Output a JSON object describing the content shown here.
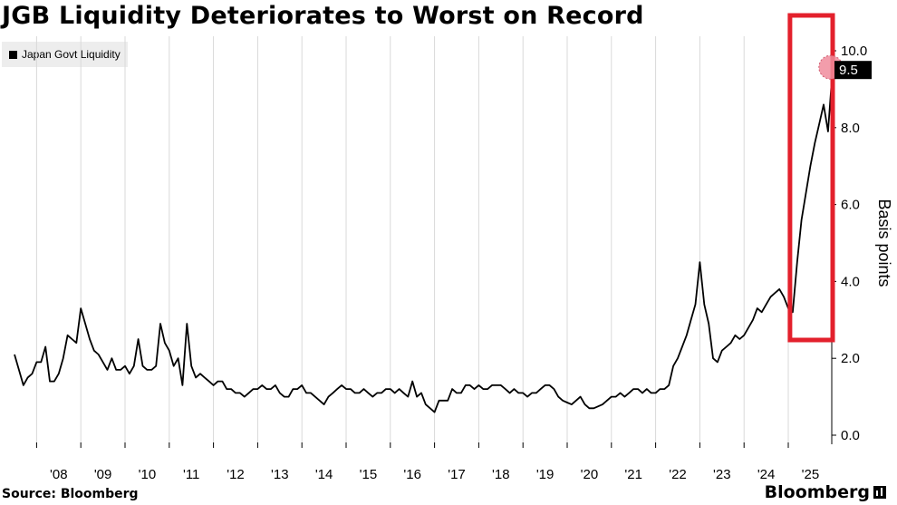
{
  "title": "JGB Liquidity Deteriorates to Worst on Record",
  "source": "Source: Bloomberg",
  "brand": "Bloomberg",
  "colors": {
    "line": "#000000",
    "highlight_box": "#e3202c",
    "highlight_dot": "#f08c9c",
    "grid": "#d9d9d9"
  },
  "chart_data": {
    "type": "line",
    "title": "JGB Liquidity Deteriorates to Worst on Record",
    "ylabel": "Basis points",
    "xlabel": "",
    "ylim": [
      0,
      10
    ],
    "y_ticks": [
      "0.0",
      "2.0",
      "4.0",
      "6.0",
      "8.0",
      "10.0"
    ],
    "x_tick_labels": [
      "'08",
      "'09",
      "'10",
      "'11",
      "'12",
      "'13",
      "'14",
      "'15",
      "'16",
      "'17",
      "'18",
      "'19",
      "'20",
      "'21",
      "'22",
      "'23",
      "'24",
      "'25"
    ],
    "grid": "vertical",
    "legend_position": "top-left",
    "last_value_label": "9.5",
    "series": [
      {
        "name": "Japan Govt Liquidity",
        "points": [
          [
            2007.5,
            2.1
          ],
          [
            2007.6,
            1.7
          ],
          [
            2007.7,
            1.3
          ],
          [
            2007.8,
            1.5
          ],
          [
            2007.9,
            1.6
          ],
          [
            2008.0,
            1.9
          ],
          [
            2008.1,
            1.9
          ],
          [
            2008.2,
            2.3
          ],
          [
            2008.3,
            1.4
          ],
          [
            2008.4,
            1.4
          ],
          [
            2008.5,
            1.6
          ],
          [
            2008.6,
            2.0
          ],
          [
            2008.7,
            2.6
          ],
          [
            2008.8,
            2.5
          ],
          [
            2008.9,
            2.4
          ],
          [
            2009.0,
            3.3
          ],
          [
            2009.1,
            2.9
          ],
          [
            2009.2,
            2.5
          ],
          [
            2009.3,
            2.2
          ],
          [
            2009.4,
            2.1
          ],
          [
            2009.5,
            1.9
          ],
          [
            2009.6,
            1.7
          ],
          [
            2009.7,
            2.0
          ],
          [
            2009.8,
            1.7
          ],
          [
            2009.9,
            1.7
          ],
          [
            2010.0,
            1.8
          ],
          [
            2010.1,
            1.6
          ],
          [
            2010.2,
            1.8
          ],
          [
            2010.3,
            2.5
          ],
          [
            2010.4,
            1.8
          ],
          [
            2010.5,
            1.7
          ],
          [
            2010.6,
            1.7
          ],
          [
            2010.7,
            1.8
          ],
          [
            2010.8,
            2.9
          ],
          [
            2010.9,
            2.4
          ],
          [
            2011.0,
            2.2
          ],
          [
            2011.1,
            1.8
          ],
          [
            2011.2,
            2.0
          ],
          [
            2011.3,
            1.3
          ],
          [
            2011.4,
            2.9
          ],
          [
            2011.5,
            1.8
          ],
          [
            2011.6,
            1.5
          ],
          [
            2011.7,
            1.6
          ],
          [
            2011.8,
            1.5
          ],
          [
            2011.9,
            1.4
          ],
          [
            2012.0,
            1.3
          ],
          [
            2012.1,
            1.4
          ],
          [
            2012.2,
            1.4
          ],
          [
            2012.3,
            1.2
          ],
          [
            2012.4,
            1.2
          ],
          [
            2012.5,
            1.1
          ],
          [
            2012.6,
            1.1
          ],
          [
            2012.7,
            1.0
          ],
          [
            2012.8,
            1.1
          ],
          [
            2012.9,
            1.2
          ],
          [
            2013.0,
            1.2
          ],
          [
            2013.1,
            1.3
          ],
          [
            2013.2,
            1.2
          ],
          [
            2013.3,
            1.2
          ],
          [
            2013.4,
            1.3
          ],
          [
            2013.5,
            1.1
          ],
          [
            2013.6,
            1.0
          ],
          [
            2013.7,
            1.0
          ],
          [
            2013.8,
            1.2
          ],
          [
            2013.9,
            1.2
          ],
          [
            2014.0,
            1.3
          ],
          [
            2014.1,
            1.1
          ],
          [
            2014.2,
            1.1
          ],
          [
            2014.3,
            1.0
          ],
          [
            2014.4,
            0.9
          ],
          [
            2014.5,
            0.8
          ],
          [
            2014.6,
            1.0
          ],
          [
            2014.7,
            1.1
          ],
          [
            2014.8,
            1.2
          ],
          [
            2014.9,
            1.3
          ],
          [
            2015.0,
            1.2
          ],
          [
            2015.1,
            1.2
          ],
          [
            2015.2,
            1.1
          ],
          [
            2015.3,
            1.1
          ],
          [
            2015.4,
            1.2
          ],
          [
            2015.5,
            1.1
          ],
          [
            2015.6,
            1.0
          ],
          [
            2015.7,
            1.1
          ],
          [
            2015.8,
            1.1
          ],
          [
            2015.9,
            1.2
          ],
          [
            2016.0,
            1.2
          ],
          [
            2016.1,
            1.1
          ],
          [
            2016.2,
            1.2
          ],
          [
            2016.3,
            1.1
          ],
          [
            2016.4,
            1.0
          ],
          [
            2016.5,
            1.4
          ],
          [
            2016.6,
            1.0
          ],
          [
            2016.7,
            1.1
          ],
          [
            2016.8,
            0.8
          ],
          [
            2016.9,
            0.7
          ],
          [
            2017.0,
            0.6
          ],
          [
            2017.1,
            0.9
          ],
          [
            2017.2,
            0.9
          ],
          [
            2017.3,
            0.9
          ],
          [
            2017.4,
            1.2
          ],
          [
            2017.5,
            1.1
          ],
          [
            2017.6,
            1.1
          ],
          [
            2017.7,
            1.3
          ],
          [
            2017.8,
            1.3
          ],
          [
            2017.9,
            1.2
          ],
          [
            2018.0,
            1.3
          ],
          [
            2018.1,
            1.2
          ],
          [
            2018.2,
            1.2
          ],
          [
            2018.3,
            1.3
          ],
          [
            2018.4,
            1.3
          ],
          [
            2018.5,
            1.3
          ],
          [
            2018.6,
            1.2
          ],
          [
            2018.7,
            1.1
          ],
          [
            2018.8,
            1.2
          ],
          [
            2018.9,
            1.1
          ],
          [
            2019.0,
            1.1
          ],
          [
            2019.1,
            1.0
          ],
          [
            2019.2,
            1.1
          ],
          [
            2019.3,
            1.1
          ],
          [
            2019.4,
            1.2
          ],
          [
            2019.5,
            1.3
          ],
          [
            2019.6,
            1.3
          ],
          [
            2019.7,
            1.2
          ],
          [
            2019.8,
            1.0
          ],
          [
            2019.9,
            0.9
          ],
          [
            2020.0,
            0.85
          ],
          [
            2020.1,
            0.8
          ],
          [
            2020.2,
            0.9
          ],
          [
            2020.3,
            1.0
          ],
          [
            2020.4,
            0.8
          ],
          [
            2020.5,
            0.7
          ],
          [
            2020.6,
            0.7
          ],
          [
            2020.7,
            0.75
          ],
          [
            2020.8,
            0.8
          ],
          [
            2020.9,
            0.9
          ],
          [
            2021.0,
            1.0
          ],
          [
            2021.1,
            1.0
          ],
          [
            2021.2,
            1.1
          ],
          [
            2021.3,
            1.0
          ],
          [
            2021.4,
            1.1
          ],
          [
            2021.5,
            1.2
          ],
          [
            2021.6,
            1.2
          ],
          [
            2021.7,
            1.1
          ],
          [
            2021.8,
            1.2
          ],
          [
            2021.9,
            1.1
          ],
          [
            2022.0,
            1.1
          ],
          [
            2022.1,
            1.2
          ],
          [
            2022.2,
            1.2
          ],
          [
            2022.3,
            1.3
          ],
          [
            2022.4,
            1.8
          ],
          [
            2022.5,
            2.0
          ],
          [
            2022.6,
            2.3
          ],
          [
            2022.7,
            2.6
          ],
          [
            2022.8,
            3.0
          ],
          [
            2022.9,
            3.4
          ],
          [
            2023.0,
            4.5
          ],
          [
            2023.1,
            3.4
          ],
          [
            2023.2,
            2.9
          ],
          [
            2023.3,
            2.0
          ],
          [
            2023.4,
            1.9
          ],
          [
            2023.5,
            2.2
          ],
          [
            2023.6,
            2.3
          ],
          [
            2023.7,
            2.4
          ],
          [
            2023.8,
            2.6
          ],
          [
            2023.9,
            2.5
          ],
          [
            2024.0,
            2.6
          ],
          [
            2024.1,
            2.8
          ],
          [
            2024.2,
            3.0
          ],
          [
            2024.3,
            3.3
          ],
          [
            2024.4,
            3.2
          ],
          [
            2024.5,
            3.4
          ],
          [
            2024.6,
            3.6
          ],
          [
            2024.7,
            3.7
          ],
          [
            2024.8,
            3.8
          ],
          [
            2024.9,
            3.6
          ],
          [
            2025.0,
            3.3
          ],
          [
            2025.1,
            3.2
          ],
          [
            2025.2,
            4.5
          ],
          [
            2025.3,
            5.6
          ],
          [
            2025.4,
            6.3
          ],
          [
            2025.5,
            7.0
          ],
          [
            2025.6,
            7.6
          ],
          [
            2025.7,
            8.1
          ],
          [
            2025.8,
            8.6
          ],
          [
            2025.9,
            7.9
          ],
          [
            2026.0,
            9.5
          ]
        ]
      }
    ],
    "highlight": {
      "x_start": 2025.1,
      "x_end": 2026.2,
      "label": ""
    }
  }
}
